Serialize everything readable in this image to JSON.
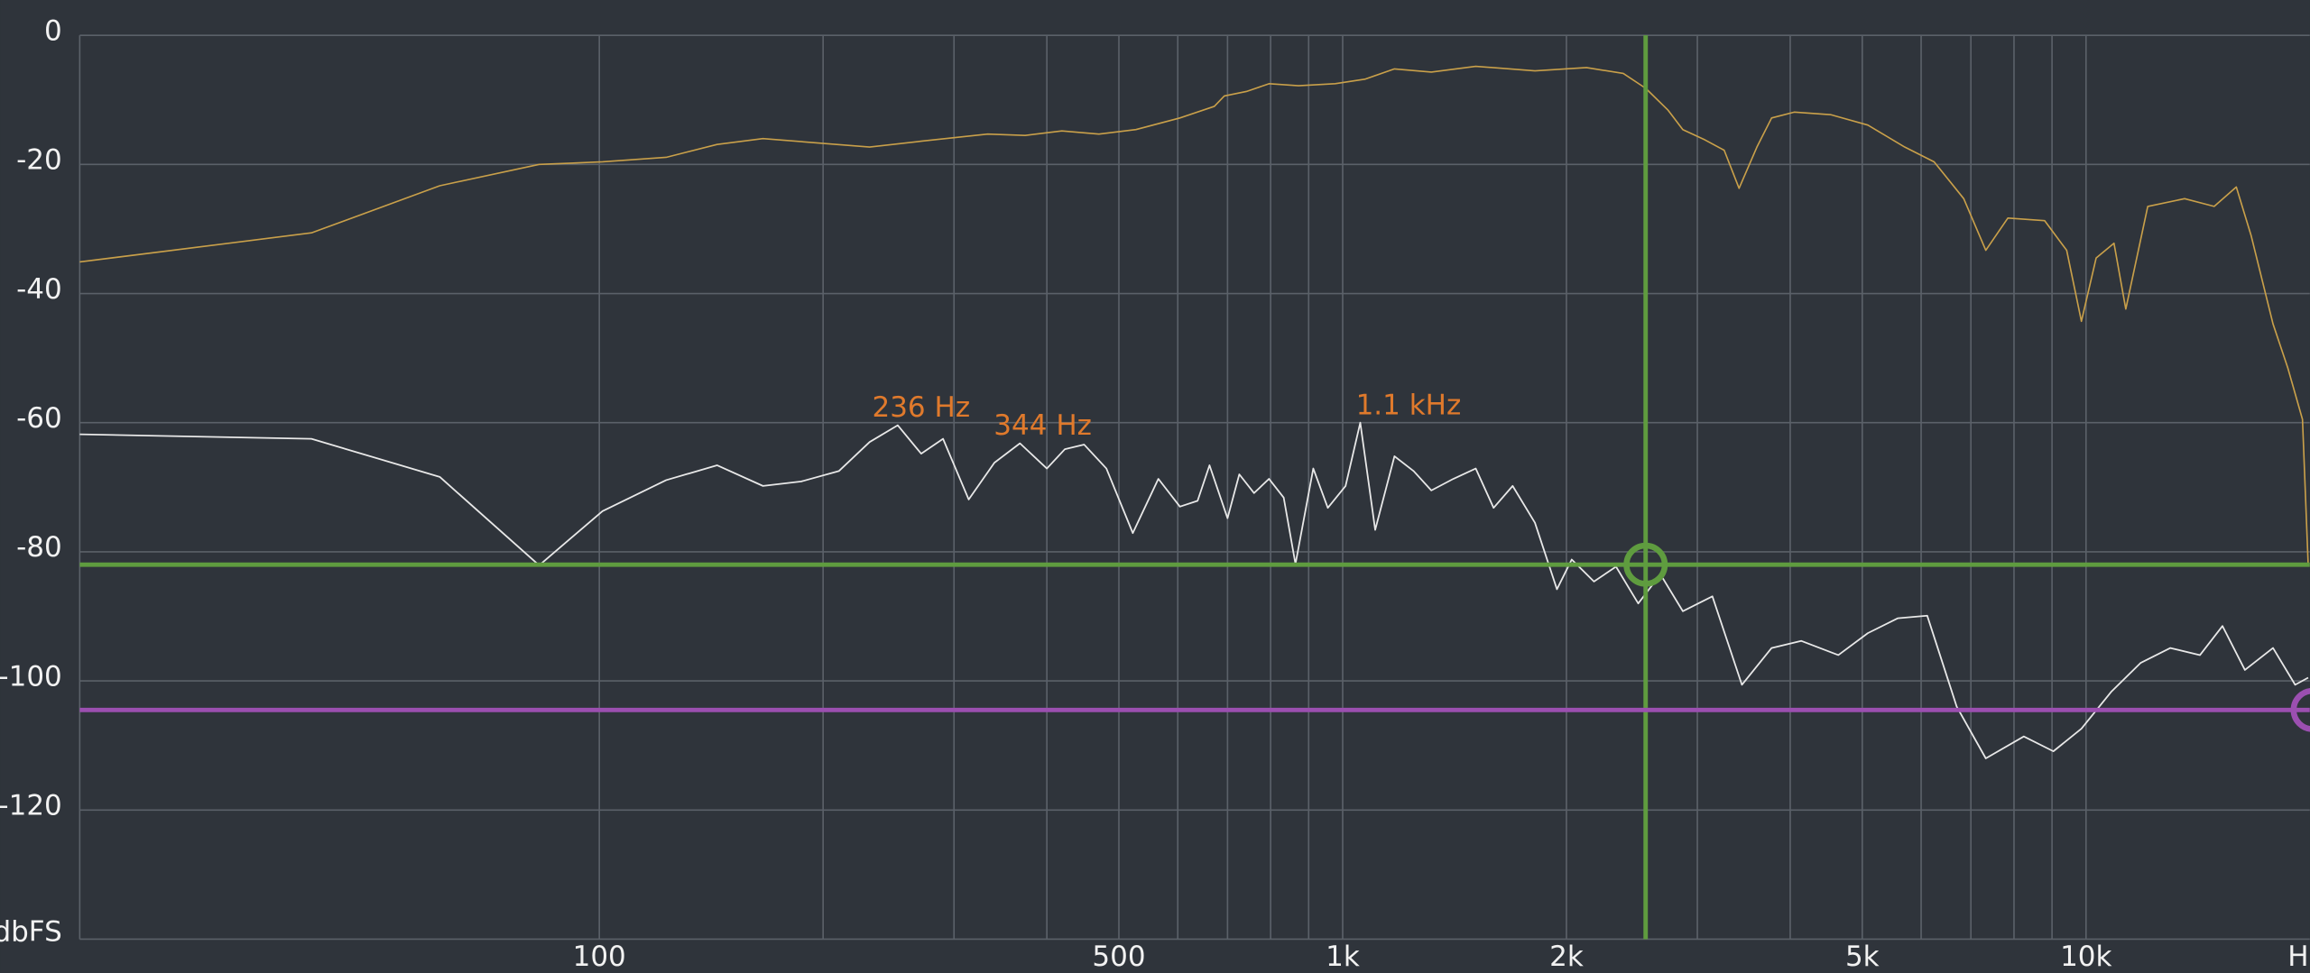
{
  "chart_data": {
    "type": "line",
    "xscale": "log",
    "grid": true,
    "xlim": [
      20,
      20000
    ],
    "ylim": [
      -140,
      0
    ],
    "xlabel": "H",
    "xticks": [
      100,
      500,
      {
        "value": 1000,
        "label": "1k"
      },
      {
        "value": 2000,
        "label": "2k"
      },
      {
        "value": 5000,
        "label": "5k"
      },
      {
        "value": 10000,
        "label": "10k"
      }
    ],
    "xgrid": [
      100,
      200,
      300,
      400,
      500,
      600,
      700,
      800,
      900,
      1000,
      2000,
      3000,
      4000,
      5000,
      6000,
      7000,
      8000,
      9000,
      10000
    ],
    "yticks": [
      0,
      -20,
      -40,
      -60,
      -80,
      -100,
      -120,
      {
        "value": -140,
        "label": "dbFS"
      }
    ],
    "series": [
      {
        "name": "peak",
        "color": "#c9a04a",
        "x": [
          20,
          41,
          61,
          83,
          101,
          123,
          144,
          166,
          231,
          271,
          333,
          374,
          419,
          470,
          527,
          604,
          672,
          693,
          742,
          796,
          872,
          977,
          1071,
          1174,
          1316,
          1510,
          1814,
          2128,
          2385,
          2556,
          2740,
          2868,
          3072,
          3260,
          3414,
          3608,
          3776,
          4049,
          4538,
          5087,
          5702,
          6247,
          6847,
          7331,
          7850,
          8795,
          9418,
          9858,
          10318,
          10904,
          11311,
          12107,
          13571,
          14873,
          15928,
          16674,
          17846,
          18680,
          19552,
          19900
        ],
        "values": [
          -35.1,
          -30.6,
          -23.3,
          -20,
          -19.6,
          -18.9,
          -16.9,
          -16,
          -17.3,
          -16.4,
          -15.3,
          -15.5,
          -14.8,
          -15.3,
          -14.6,
          -12.8,
          -11,
          -9.4,
          -8.7,
          -7.5,
          -7.8,
          -7.5,
          -6.8,
          -5.2,
          -5.7,
          -4.8,
          -5.5,
          -5,
          -5.9,
          -8.2,
          -11.6,
          -14.6,
          -16.2,
          -17.8,
          -23.7,
          -17.3,
          -12.8,
          -11.9,
          -12.3,
          -13.9,
          -17.3,
          -19.6,
          -25.3,
          -33.3,
          -28.3,
          -28.7,
          -33.3,
          -44.3,
          -34.5,
          -32.2,
          -42.4,
          -26.5,
          -25.3,
          -26.5,
          -23.5,
          -31,
          -44.7,
          -51.5,
          -59.5,
          -82
        ]
      },
      {
        "name": "spectrum",
        "color": "#e8e8e8",
        "x": [
          20,
          41,
          61,
          83,
          101,
          123,
          144,
          166,
          187,
          210,
          231,
          252,
          271,
          290,
          314,
          340,
          368,
          400,
          423,
          449,
          481,
          522,
          565,
          604,
          638,
          662,
          700,
          726,
          760,
          796,
          833,
          864,
          913,
          955,
          1009,
          1056,
          1106,
          1174,
          1246,
          1316,
          1409,
          1510,
          1596,
          1693,
          1814,
          1942,
          2033,
          2178,
          2332,
          2498,
          2676,
          2868,
          3143,
          3444,
          3776,
          4138,
          4643,
          5087,
          5579,
          6115,
          6700,
          7331,
          8247,
          9038,
          9858,
          10808,
          11847,
          12985,
          14233,
          15261,
          16358,
          17846,
          19113,
          19900
        ],
        "values": [
          -61.8,
          -62.5,
          -68.4,
          -82.1,
          -73.7,
          -68.9,
          -66.6,
          -69.8,
          -69.1,
          -67.5,
          -63,
          -60.4,
          -64.8,
          -62.5,
          -71.9,
          -66.2,
          -63.2,
          -67.1,
          -64.1,
          -63.4,
          -67.1,
          -77.1,
          -68.7,
          -73,
          -72.1,
          -66.6,
          -74.8,
          -68,
          -70.9,
          -68.7,
          -71.6,
          -81.9,
          -67.1,
          -73.2,
          -69.8,
          -60,
          -76.6,
          -65.2,
          -67.5,
          -70.5,
          -68.7,
          -67.1,
          -73.2,
          -69.8,
          -75.5,
          -85.8,
          -81.2,
          -84.6,
          -82.3,
          -88,
          -83.5,
          -89.2,
          -86.9,
          -100.6,
          -94.9,
          -93.8,
          -96,
          -92.6,
          -90.3,
          -89.9,
          -104,
          -112,
          -108.6,
          -110.9,
          -107.4,
          -101.7,
          -97.2,
          -94.9,
          -96,
          -91.5,
          -98.3,
          -94.9,
          -100.6,
          -99.5
        ]
      }
    ],
    "annotations": [
      {
        "text": "236 Hz",
        "x": 236,
        "y": -60.4
      },
      {
        "text": "344 Hz",
        "x": 344,
        "y": -63.2
      },
      {
        "text": "1.1  kHz",
        "x": 1056,
        "y": -60
      }
    ],
    "cursor": {
      "x": 2556,
      "y": -82,
      "color": "#5f9c3f"
    },
    "threshold": {
      "y": -104.5,
      "color": "#9b4fb0"
    }
  }
}
